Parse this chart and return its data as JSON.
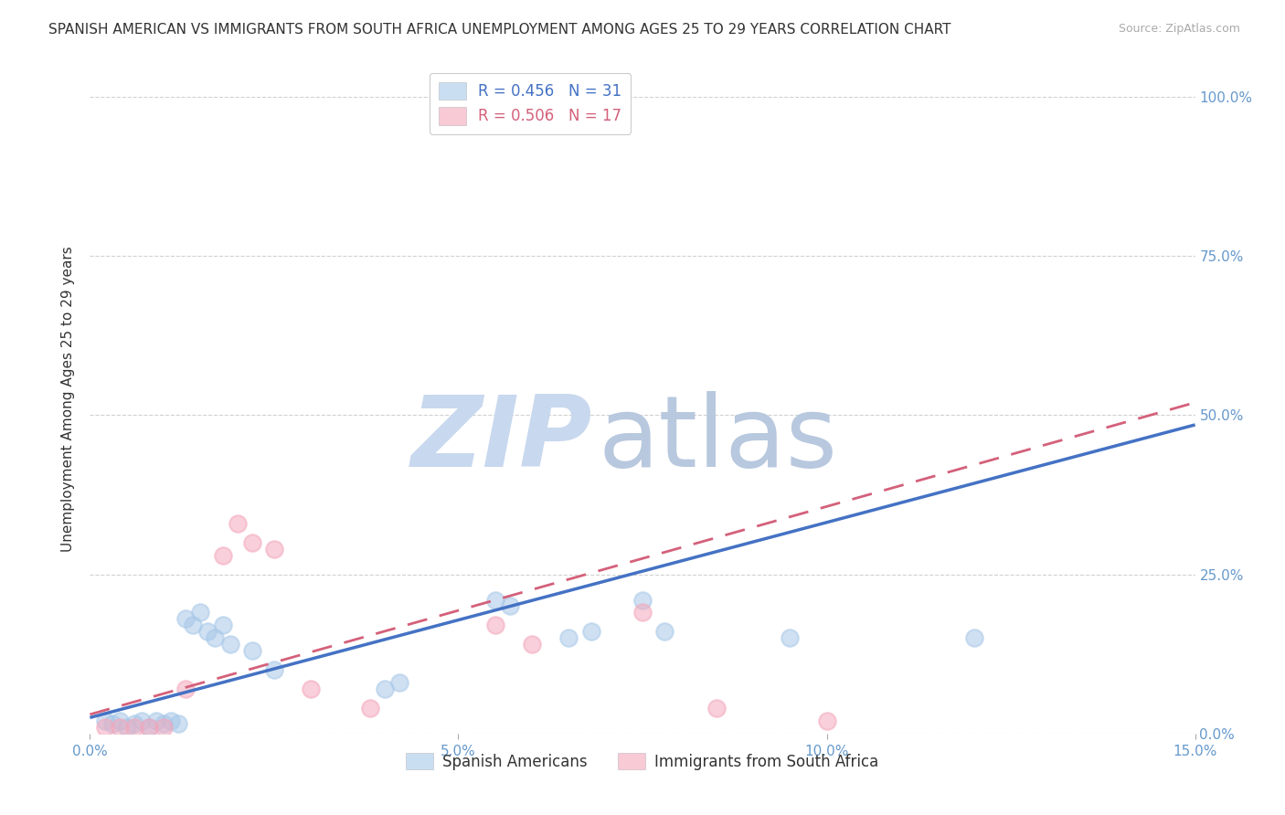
{
  "title": "SPANISH AMERICAN VS IMMIGRANTS FROM SOUTH AFRICA UNEMPLOYMENT AMONG AGES 25 TO 29 YEARS CORRELATION CHART",
  "source": "Source: ZipAtlas.com",
  "ylabel": "Unemployment Among Ages 25 to 29 years",
  "xlim": [
    0.0,
    0.15
  ],
  "ylim": [
    0.0,
    1.05
  ],
  "xticks": [
    0.0,
    0.05,
    0.1,
    0.15
  ],
  "xtick_labels": [
    "0.0%",
    "5.0%",
    "10.0%",
    "15.0%"
  ],
  "yticks_right": [
    0.0,
    0.25,
    0.5,
    0.75,
    1.0
  ],
  "ytick_labels_right": [
    "0.0%",
    "25.0%",
    "50.0%",
    "75.0%",
    "100.0%"
  ],
  "blue_R": 0.456,
  "blue_N": 31,
  "pink_R": 0.506,
  "pink_N": 17,
  "blue_color": "#a8c8e8",
  "pink_color": "#f4a8bc",
  "blue_trend_color": "#4472c4",
  "pink_trend_color": "#d4607a",
  "blue_scatter": [
    [
      0.002,
      0.02
    ],
    [
      0.003,
      0.015
    ],
    [
      0.004,
      0.02
    ],
    [
      0.005,
      0.01
    ],
    [
      0.006,
      0.015
    ],
    [
      0.007,
      0.02
    ],
    [
      0.008,
      0.01
    ],
    [
      0.009,
      0.02
    ],
    [
      0.01,
      0.015
    ],
    [
      0.011,
      0.02
    ],
    [
      0.012,
      0.015
    ],
    [
      0.013,
      0.18
    ],
    [
      0.014,
      0.17
    ],
    [
      0.015,
      0.19
    ],
    [
      0.016,
      0.16
    ],
    [
      0.017,
      0.15
    ],
    [
      0.018,
      0.17
    ],
    [
      0.019,
      0.14
    ],
    [
      0.022,
      0.13
    ],
    [
      0.025,
      0.1
    ],
    [
      0.04,
      0.07
    ],
    [
      0.042,
      0.08
    ],
    [
      0.055,
      0.21
    ],
    [
      0.057,
      0.2
    ],
    [
      0.065,
      0.15
    ],
    [
      0.068,
      0.16
    ],
    [
      0.075,
      0.21
    ],
    [
      0.078,
      0.16
    ],
    [
      0.095,
      0.15
    ],
    [
      0.12,
      0.15
    ],
    [
      0.068,
      1.0
    ]
  ],
  "pink_scatter": [
    [
      0.002,
      0.01
    ],
    [
      0.004,
      0.01
    ],
    [
      0.006,
      0.01
    ],
    [
      0.008,
      0.01
    ],
    [
      0.01,
      0.01
    ],
    [
      0.013,
      0.07
    ],
    [
      0.018,
      0.28
    ],
    [
      0.02,
      0.33
    ],
    [
      0.022,
      0.3
    ],
    [
      0.025,
      0.29
    ],
    [
      0.03,
      0.07
    ],
    [
      0.038,
      0.04
    ],
    [
      0.055,
      0.17
    ],
    [
      0.06,
      0.14
    ],
    [
      0.075,
      0.19
    ],
    [
      0.085,
      0.04
    ],
    [
      0.1,
      0.02
    ]
  ],
  "blue_trend_x": [
    0.0,
    0.15
  ],
  "blue_trend_y": [
    0.025,
    0.485
  ],
  "pink_trend_x": [
    0.0,
    0.15
  ],
  "pink_trend_y": [
    0.03,
    0.52
  ],
  "watermark_zip": "ZIP",
  "watermark_atlas": "atlas",
  "watermark_color_zip": "#c8d8ee",
  "watermark_color_atlas": "#b8c8de",
  "background_color": "#ffffff",
  "grid_color": "#cccccc",
  "title_fontsize": 11,
  "tick_color": "#6699cc",
  "legend_label1": "Spanish Americans",
  "legend_label2": "Immigrants from South Africa"
}
